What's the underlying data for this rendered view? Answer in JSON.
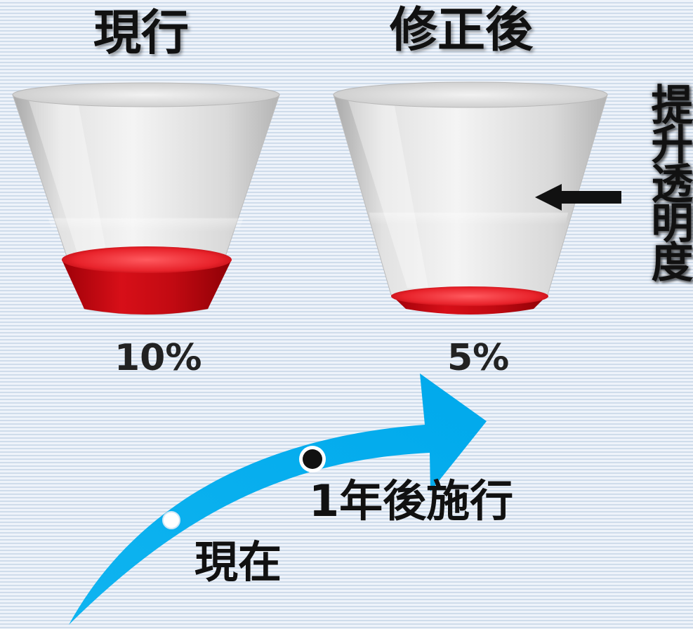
{
  "left_cup": {
    "title": "現行",
    "percent": "10%",
    "fill_fraction": 0.1
  },
  "right_cup": {
    "title": "修正後",
    "percent": "5%",
    "fill_fraction": 0.05
  },
  "annotation": {
    "text": "提升透明度"
  },
  "timeline": {
    "now_label": "現在",
    "future_label": "1年後施行"
  },
  "colors": {
    "liquid": "#e0101a",
    "arrow": "#00aeef",
    "cup": "#e6e6e6"
  }
}
